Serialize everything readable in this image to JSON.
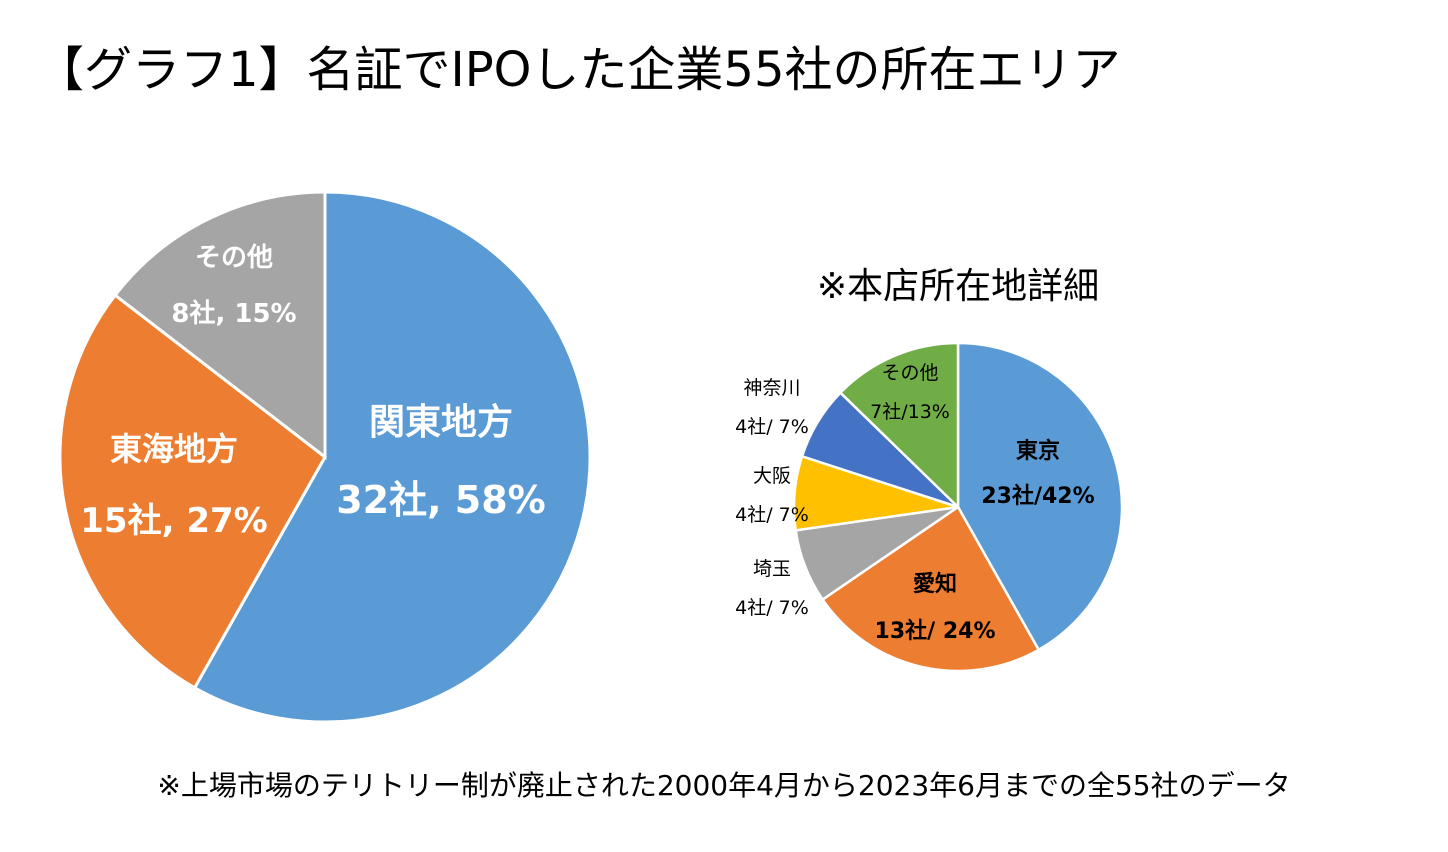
{
  "title": "【グラフ1】名証でIPOした企業55社の所在エリア",
  "footnote": "※上場市場のテリトリー制が廃止された2000年4月から2023年6月までの全55社のデータ",
  "chart_data": [
    {
      "type": "pie",
      "title": "",
      "total": 55,
      "slices": [
        {
          "name": "関東地方",
          "value": 32,
          "percent": 58,
          "label_value": "32社, 58%",
          "color": "#5B9BD5"
        },
        {
          "name": "東海地方",
          "value": 15,
          "percent": 27,
          "label_value": "15社, 27%",
          "color": "#ED7D31"
        },
        {
          "name": "その他",
          "value": 8,
          "percent": 15,
          "label_value": "8社, 15%",
          "color": "#A5A5A5"
        }
      ]
    },
    {
      "type": "pie",
      "title": "※本店所在地詳細",
      "total": 55,
      "slices": [
        {
          "name": "東京",
          "value": 23,
          "percent": 42,
          "label_value": "23社/42%",
          "color": "#5B9BD5"
        },
        {
          "name": "愛知",
          "value": 13,
          "percent": 24,
          "label_value": "13社/ 24%",
          "color": "#ED7D31"
        },
        {
          "name": "埼玉",
          "value": 4,
          "percent": 7,
          "label_value": "4社/ 7%",
          "color": "#A5A5A5"
        },
        {
          "name": "大阪",
          "value": 4,
          "percent": 7,
          "label_value": "4社/ 7%",
          "color": "#FFC000"
        },
        {
          "name": "神奈川",
          "value": 4,
          "percent": 7,
          "label_value": "4社/ 7%",
          "color": "#4472C4"
        },
        {
          "name": "その他",
          "value": 7,
          "percent": 13,
          "label_value": "7社/13%",
          "color": "#70AD47"
        }
      ]
    }
  ]
}
